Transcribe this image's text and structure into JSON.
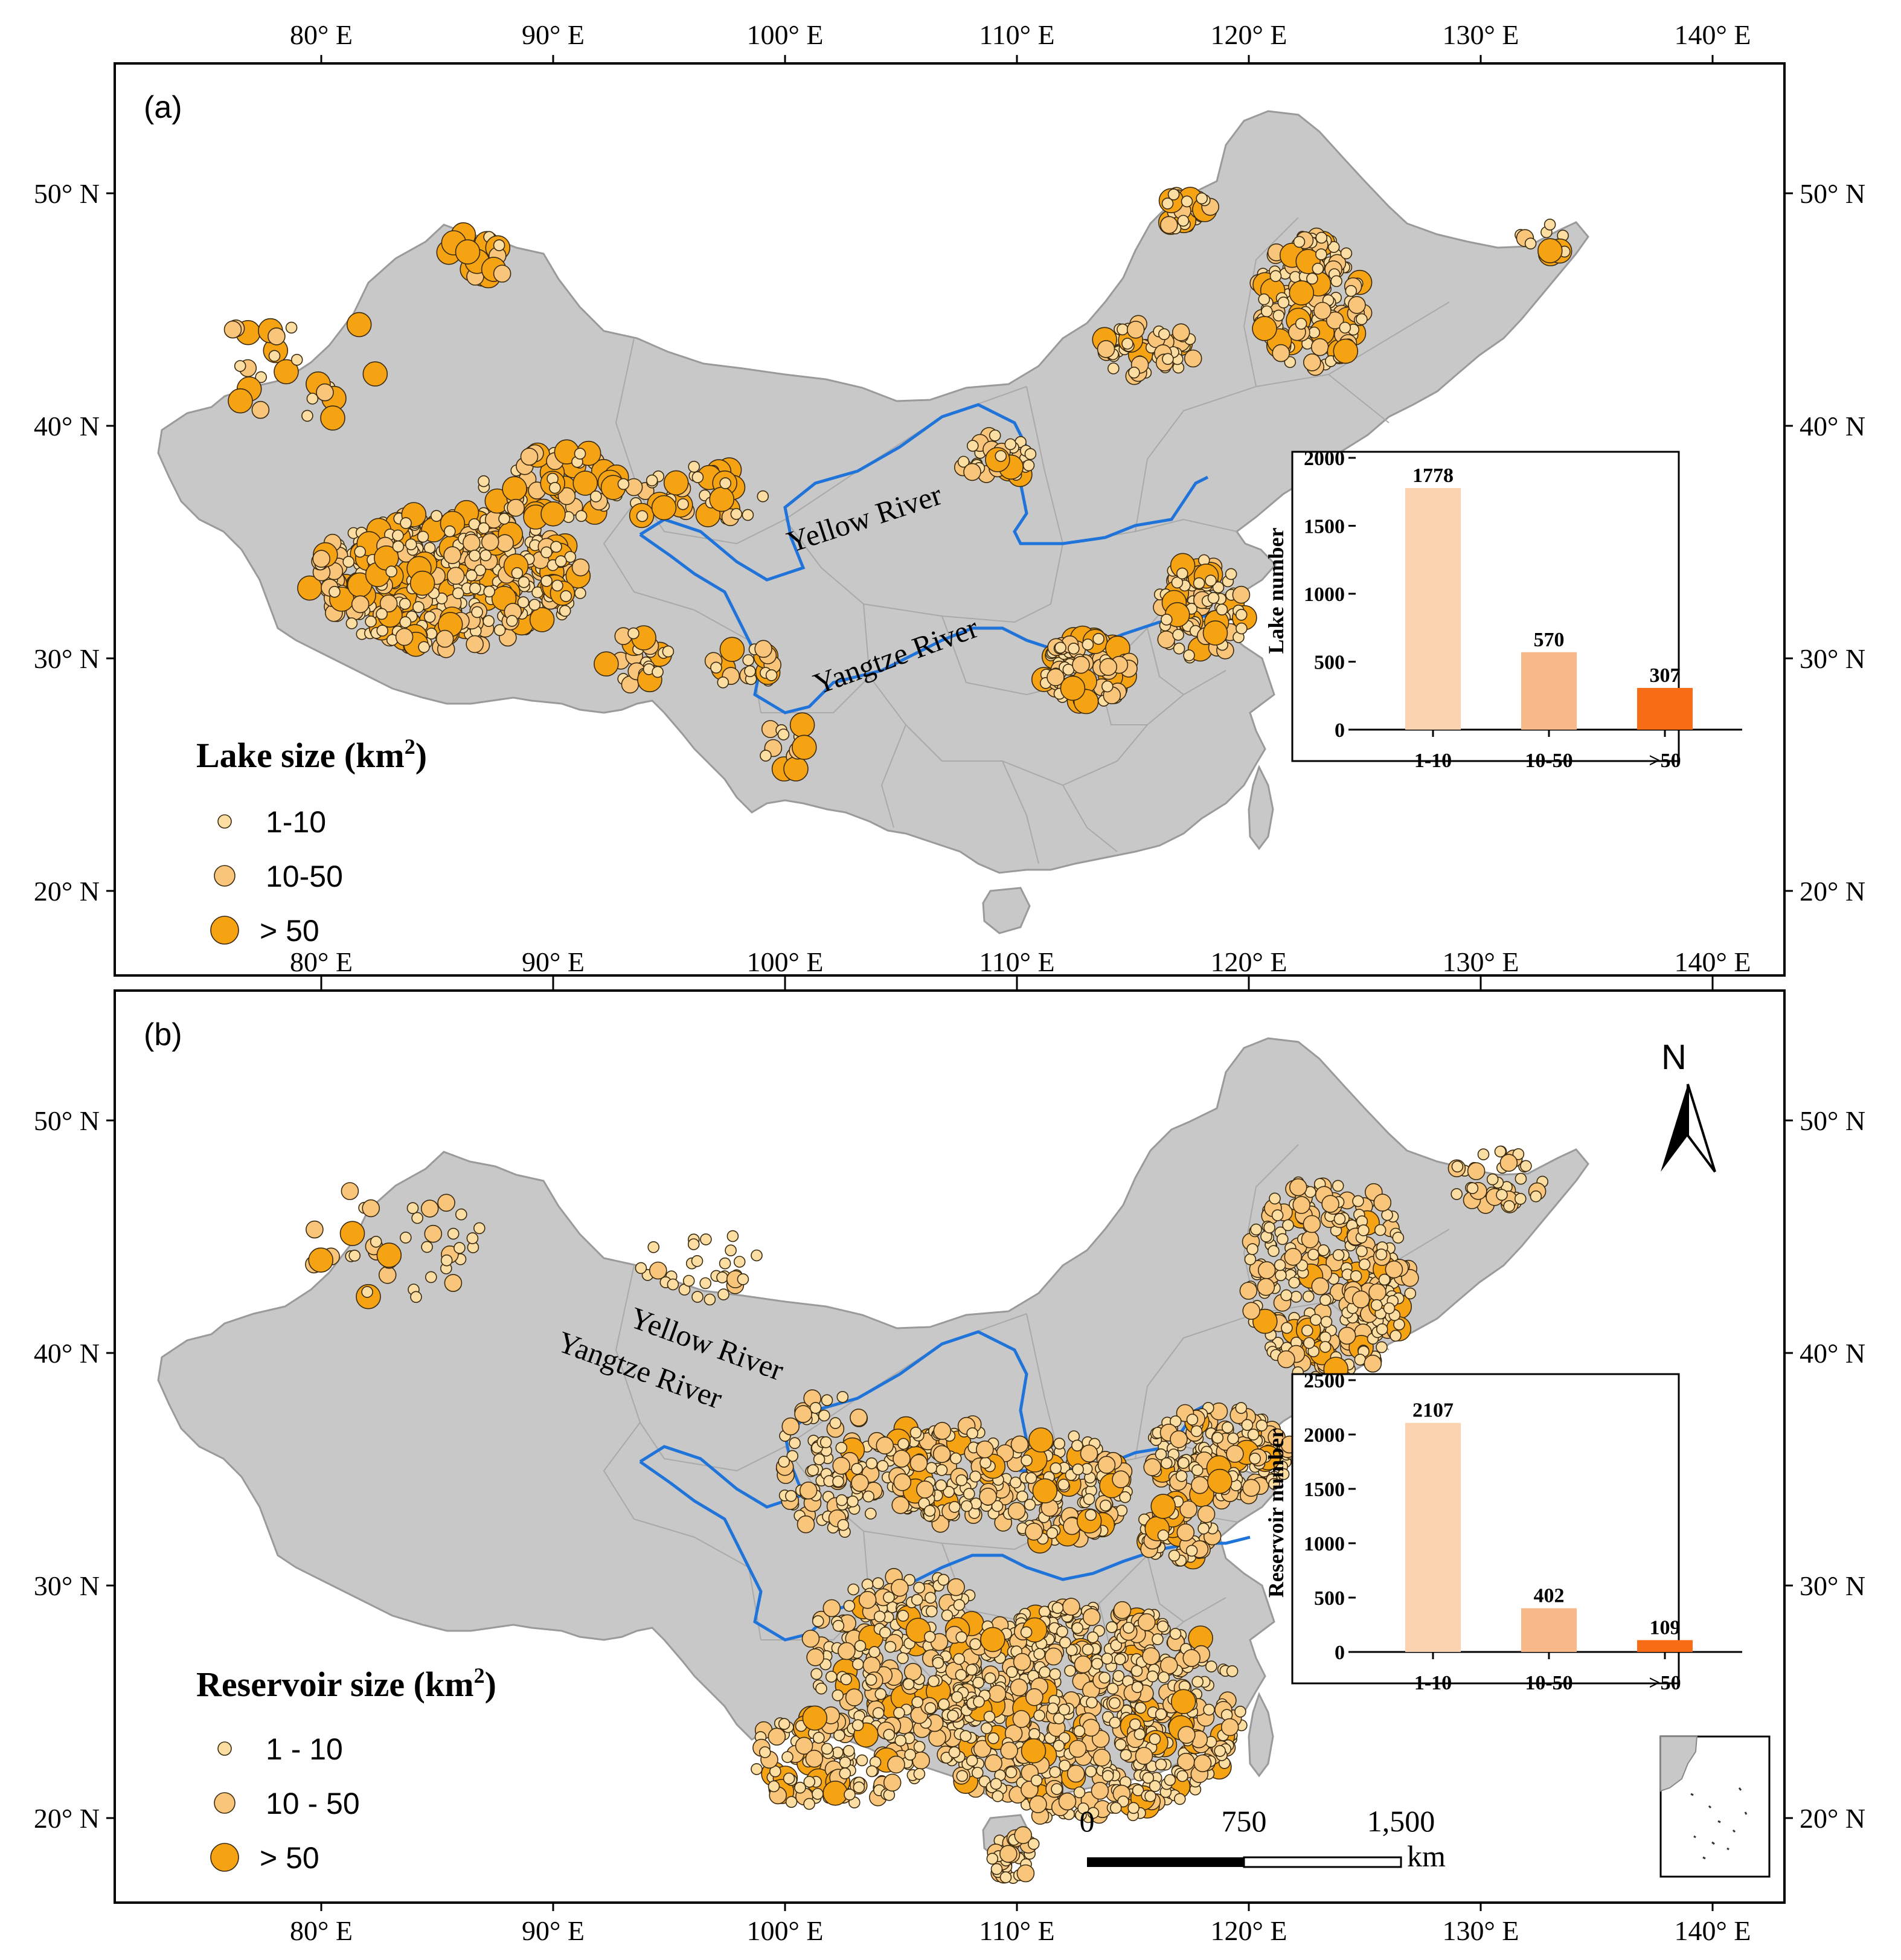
{
  "colors": {
    "small": "#fcdea2",
    "medium": "#f8c57a",
    "large": "#f5a312",
    "bar_small": "#fbd3b1",
    "bar_medium": "#f9b888",
    "bar_large": "#f76c14",
    "land": "#c8c8c8",
    "river": "#1f73d9"
  },
  "axes": {
    "longitudes": [
      "80° E",
      "90° E",
      "100° E",
      "110° E",
      "120° E",
      "130° E",
      "140° E"
    ],
    "latitudes": [
      "50° N",
      "40° N",
      "30° N",
      "20° N"
    ]
  },
  "panel_a": {
    "label": "(a)",
    "rivers": {
      "yellow": "Yellow River",
      "yangtze": "Yangtze River"
    },
    "legend": {
      "title": "Lake size (km",
      "title_sup": "2",
      "title_end": ")",
      "items": [
        "1-10",
        "10-50",
        "> 50"
      ]
    },
    "chart_data": {
      "type": "bar",
      "categories": [
        "1-10",
        "10-50",
        ">50"
      ],
      "values": [
        1778,
        570,
        307
      ],
      "ylabel": "Lake number",
      "ylim": [
        0,
        2000
      ],
      "yticks": [
        "0",
        "500",
        "1000",
        "1500",
        "2000"
      ]
    }
  },
  "panel_b": {
    "label": "(b)",
    "rivers": {
      "yellow": "Yellow River",
      "yangtze": "Yangtze River"
    },
    "legend": {
      "title": "Reservoir size (km",
      "title_sup": "2",
      "title_end": ")",
      "items": [
        "1 - 10",
        "10 - 50",
        "> 50"
      ]
    },
    "chart_data": {
      "type": "bar",
      "categories": [
        "1-10",
        "10-50",
        ">50"
      ],
      "values": [
        2107,
        402,
        109
      ],
      "ylabel": "Reservoir number",
      "ylim": [
        0,
        2500
      ],
      "yticks": [
        "0",
        "500",
        "1000",
        "1500",
        "2000",
        "2500"
      ]
    },
    "north_arrow": "N",
    "scale_bar": {
      "labels": [
        "0",
        "750",
        "1,500"
      ],
      "unit": "km"
    }
  }
}
